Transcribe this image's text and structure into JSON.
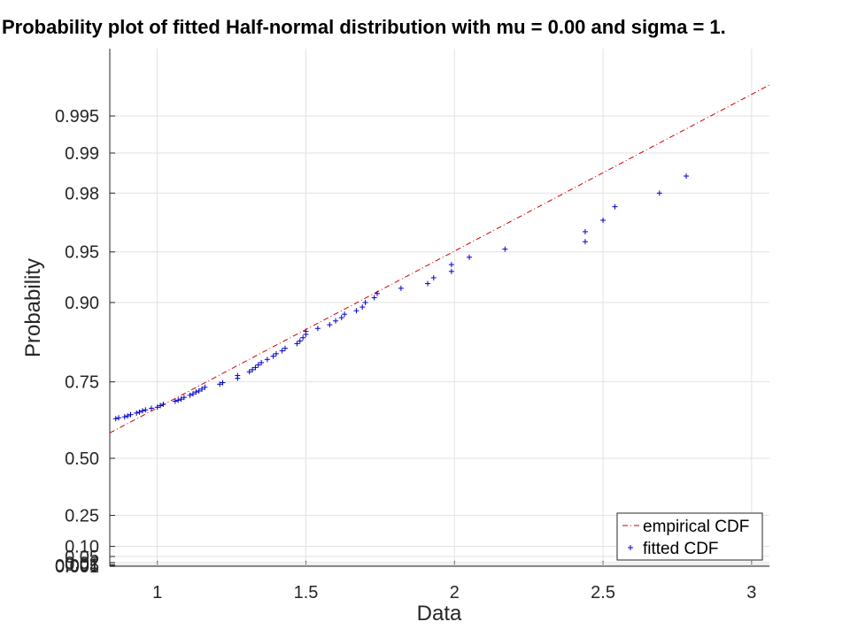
{
  "chart_data": {
    "type": "scatter",
    "title": "Probability plot of fitted Half-normal distribution with mu = 0.00 and sigma = 1.",
    "xlabel": "Data",
    "ylabel": "Probability",
    "xlim": [
      0.84,
      3.06
    ],
    "x_ticks": [
      1,
      1.5,
      2,
      2.5,
      3
    ],
    "x_tick_labels": [
      "1",
      "1.5",
      "2",
      "2.5",
      "3"
    ],
    "y_scale": "half-normal probability",
    "y_ticks": [
      0.001,
      0.005,
      0.01,
      0.02,
      0.05,
      0.1,
      0.25,
      0.5,
      0.75,
      0.9,
      0.95,
      0.98,
      0.99,
      0.995
    ],
    "y_tick_labels": [
      "0.001",
      "0.005",
      "0.01",
      "0.02",
      "0.05",
      "0.10",
      "0.25",
      "0.50",
      "0.75",
      "0.90",
      "0.95",
      "0.98",
      "0.99",
      "0.995"
    ],
    "grid": true,
    "legend": "bottom-right",
    "series": [
      {
        "name": "empirical CDF",
        "style": "dash-dot line",
        "color": "#cc0000",
        "x": [
          0.84,
          3.06
        ],
        "y": [
          0.5948,
          0.9973
        ]
      },
      {
        "name": "fitted CDF",
        "style": "plus markers",
        "color": "#0000cc",
        "x": [
          0.86,
          0.87,
          0.89,
          0.9,
          0.91,
          0.93,
          0.94,
          0.95,
          0.96,
          0.98,
          1.0,
          1.01,
          1.02,
          1.06,
          1.07,
          1.08,
          1.09,
          1.11,
          1.12,
          1.13,
          1.14,
          1.15,
          1.16,
          1.21,
          1.22,
          1.27,
          1.27,
          1.31,
          1.32,
          1.33,
          1.34,
          1.35,
          1.37,
          1.39,
          1.4,
          1.42,
          1.43,
          1.47,
          1.48,
          1.49,
          1.5,
          1.5,
          1.54,
          1.58,
          1.6,
          1.62,
          1.63,
          1.67,
          1.69,
          1.7,
          1.73,
          1.74,
          1.82,
          1.91,
          1.93,
          1.99,
          1.99,
          2.05,
          2.17,
          2.44,
          2.44,
          2.5,
          2.54,
          2.69,
          2.78
        ],
        "y": [
          0.643,
          0.646,
          0.649,
          0.652,
          0.656,
          0.661,
          0.664,
          0.668,
          0.671,
          0.676,
          0.679,
          0.684,
          0.688,
          0.697,
          0.7,
          0.703,
          0.708,
          0.714,
          0.718,
          0.723,
          0.726,
          0.731,
          0.736,
          0.744,
          0.748,
          0.759,
          0.766,
          0.775,
          0.78,
          0.785,
          0.791,
          0.796,
          0.803,
          0.81,
          0.815,
          0.821,
          0.826,
          0.835,
          0.84,
          0.846,
          0.852,
          0.857,
          0.862,
          0.868,
          0.874,
          0.879,
          0.884,
          0.889,
          0.894,
          0.9,
          0.906,
          0.911,
          0.917,
          0.922,
          0.928,
          0.934,
          0.94,
          0.946,
          0.952,
          0.957,
          0.963,
          0.969,
          0.975,
          0.98,
          0.985
        ]
      }
    ]
  }
}
